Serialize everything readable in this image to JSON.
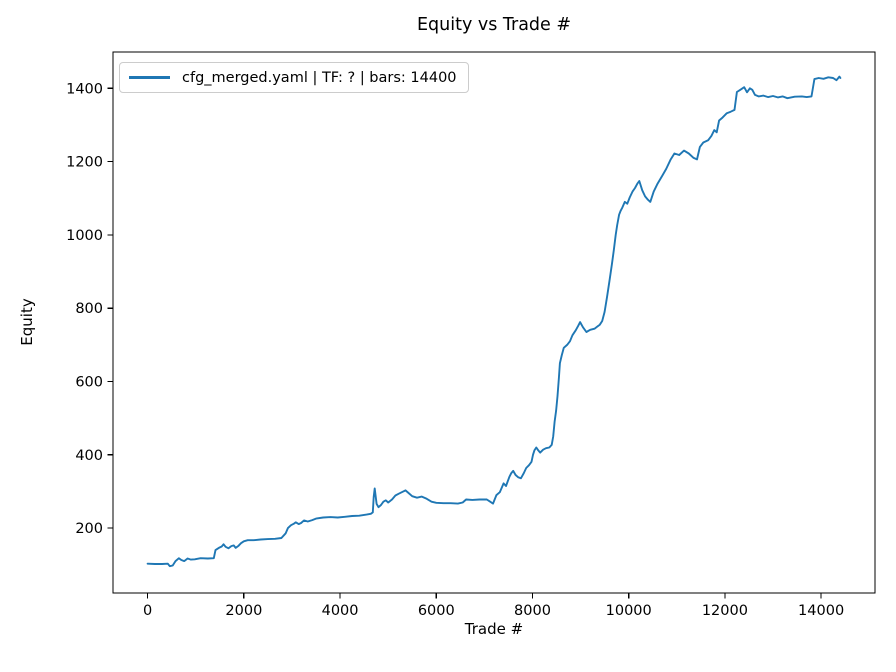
{
  "chart_data": {
    "type": "line",
    "title": "Equity vs Trade #",
    "xlabel": "Trade #",
    "ylabel": "Equity",
    "grid": false,
    "legend_position": "upper left",
    "xlim": [
      -720,
      15120
    ],
    "ylim": [
      23,
      1499
    ],
    "x_ticks": [
      0,
      2000,
      4000,
      6000,
      8000,
      10000,
      12000,
      14000
    ],
    "y_ticks": [
      200,
      400,
      600,
      800,
      1000,
      1200,
      1400
    ],
    "axis_color": "#000000",
    "background_color": "#ffffff",
    "series": [
      {
        "name": "cfg_merged.yaml | TF: ? | bars: 14400",
        "color": "#1f77b4",
        "points": [
          [
            0,
            103
          ],
          [
            150,
            102
          ],
          [
            300,
            102
          ],
          [
            420,
            103
          ],
          [
            460,
            96
          ],
          [
            520,
            98
          ],
          [
            580,
            110
          ],
          [
            650,
            118
          ],
          [
            700,
            113
          ],
          [
            760,
            110
          ],
          [
            830,
            117
          ],
          [
            900,
            114
          ],
          [
            980,
            115
          ],
          [
            1100,
            118
          ],
          [
            1250,
            117
          ],
          [
            1375,
            118
          ],
          [
            1410,
            140
          ],
          [
            1480,
            146
          ],
          [
            1540,
            150
          ],
          [
            1580,
            156
          ],
          [
            1620,
            149
          ],
          [
            1680,
            145
          ],
          [
            1740,
            151
          ],
          [
            1790,
            153
          ],
          [
            1830,
            146
          ],
          [
            1890,
            152
          ],
          [
            1940,
            159
          ],
          [
            2000,
            164
          ],
          [
            2080,
            167
          ],
          [
            2200,
            167
          ],
          [
            2350,
            169
          ],
          [
            2500,
            170
          ],
          [
            2650,
            171
          ],
          [
            2780,
            173
          ],
          [
            2870,
            186
          ],
          [
            2915,
            200
          ],
          [
            2980,
            208
          ],
          [
            3040,
            212
          ],
          [
            3080,
            216
          ],
          [
            3140,
            211
          ],
          [
            3190,
            214
          ],
          [
            3250,
            221
          ],
          [
            3330,
            218
          ],
          [
            3420,
            222
          ],
          [
            3500,
            226
          ],
          [
            3650,
            229
          ],
          [
            3800,
            230
          ],
          [
            3950,
            229
          ],
          [
            4100,
            231
          ],
          [
            4250,
            233
          ],
          [
            4400,
            234
          ],
          [
            4550,
            237
          ],
          [
            4640,
            239
          ],
          [
            4680,
            243
          ],
          [
            4700,
            285
          ],
          [
            4720,
            308
          ],
          [
            4740,
            286
          ],
          [
            4760,
            266
          ],
          [
            4800,
            257
          ],
          [
            4850,
            263
          ],
          [
            4900,
            272
          ],
          [
            4950,
            276
          ],
          [
            5000,
            270
          ],
          [
            5080,
            278
          ],
          [
            5150,
            289
          ],
          [
            5220,
            294
          ],
          [
            5300,
            299
          ],
          [
            5360,
            303
          ],
          [
            5420,
            296
          ],
          [
            5500,
            287
          ],
          [
            5600,
            283
          ],
          [
            5700,
            286
          ],
          [
            5800,
            280
          ],
          [
            5900,
            272
          ],
          [
            6000,
            269
          ],
          [
            6150,
            268
          ],
          [
            6300,
            268
          ],
          [
            6450,
            267
          ],
          [
            6550,
            270
          ],
          [
            6620,
            278
          ],
          [
            6750,
            277
          ],
          [
            6900,
            278
          ],
          [
            7050,
            278
          ],
          [
            7120,
            272
          ],
          [
            7180,
            267
          ],
          [
            7250,
            290
          ],
          [
            7320,
            298
          ],
          [
            7400,
            322
          ],
          [
            7450,
            315
          ],
          [
            7520,
            340
          ],
          [
            7560,
            350
          ],
          [
            7600,
            356
          ],
          [
            7650,
            345
          ],
          [
            7700,
            339
          ],
          [
            7760,
            336
          ],
          [
            7820,
            350
          ],
          [
            7870,
            364
          ],
          [
            7930,
            372
          ],
          [
            7980,
            381
          ],
          [
            8010,
            400
          ],
          [
            8040,
            412
          ],
          [
            8080,
            420
          ],
          [
            8120,
            412
          ],
          [
            8160,
            406
          ],
          [
            8220,
            414
          ],
          [
            8280,
            418
          ],
          [
            8350,
            420
          ],
          [
            8400,
            427
          ],
          [
            8430,
            450
          ],
          [
            8460,
            490
          ],
          [
            8490,
            520
          ],
          [
            8520,
            560
          ],
          [
            8550,
            610
          ],
          [
            8570,
            650
          ],
          [
            8610,
            672
          ],
          [
            8650,
            692
          ],
          [
            8720,
            700
          ],
          [
            8780,
            710
          ],
          [
            8830,
            726
          ],
          [
            8900,
            740
          ],
          [
            8950,
            752
          ],
          [
            8990,
            762
          ],
          [
            9050,
            748
          ],
          [
            9120,
            735
          ],
          [
            9200,
            741
          ],
          [
            9290,
            744
          ],
          [
            9350,
            750
          ],
          [
            9400,
            755
          ],
          [
            9450,
            765
          ],
          [
            9500,
            790
          ],
          [
            9550,
            830
          ],
          [
            9600,
            875
          ],
          [
            9650,
            920
          ],
          [
            9690,
            958
          ],
          [
            9730,
            1000
          ],
          [
            9760,
            1027
          ],
          [
            9800,
            1055
          ],
          [
            9830,
            1065
          ],
          [
            9870,
            1075
          ],
          [
            9920,
            1090
          ],
          [
            9970,
            1085
          ],
          [
            10020,
            1102
          ],
          [
            10080,
            1118
          ],
          [
            10130,
            1128
          ],
          [
            10180,
            1140
          ],
          [
            10220,
            1147
          ],
          [
            10280,
            1122
          ],
          [
            10340,
            1105
          ],
          [
            10400,
            1096
          ],
          [
            10450,
            1090
          ],
          [
            10520,
            1118
          ],
          [
            10600,
            1140
          ],
          [
            10700,
            1162
          ],
          [
            10780,
            1180
          ],
          [
            10870,
            1205
          ],
          [
            10950,
            1222
          ],
          [
            11050,
            1218
          ],
          [
            11150,
            1230
          ],
          [
            11250,
            1222
          ],
          [
            11350,
            1210
          ],
          [
            11420,
            1206
          ],
          [
            11480,
            1240
          ],
          [
            11550,
            1252
          ],
          [
            11650,
            1258
          ],
          [
            11720,
            1270
          ],
          [
            11780,
            1286
          ],
          [
            11830,
            1280
          ],
          [
            11880,
            1312
          ],
          [
            11950,
            1320
          ],
          [
            12040,
            1332
          ],
          [
            12120,
            1336
          ],
          [
            12200,
            1341
          ],
          [
            12250,
            1390
          ],
          [
            12320,
            1396
          ],
          [
            12400,
            1403
          ],
          [
            12460,
            1389
          ],
          [
            12520,
            1400
          ],
          [
            12570,
            1396
          ],
          [
            12625,
            1382
          ],
          [
            12700,
            1378
          ],
          [
            12800,
            1380
          ],
          [
            12900,
            1376
          ],
          [
            13000,
            1379
          ],
          [
            13100,
            1375
          ],
          [
            13200,
            1378
          ],
          [
            13300,
            1373
          ],
          [
            13450,
            1377
          ],
          [
            13600,
            1378
          ],
          [
            13700,
            1376
          ],
          [
            13800,
            1378
          ],
          [
            13860,
            1425
          ],
          [
            13950,
            1428
          ],
          [
            14050,
            1426
          ],
          [
            14150,
            1430
          ],
          [
            14250,
            1428
          ],
          [
            14320,
            1422
          ],
          [
            14380,
            1432
          ],
          [
            14400,
            1428
          ]
        ]
      }
    ]
  }
}
